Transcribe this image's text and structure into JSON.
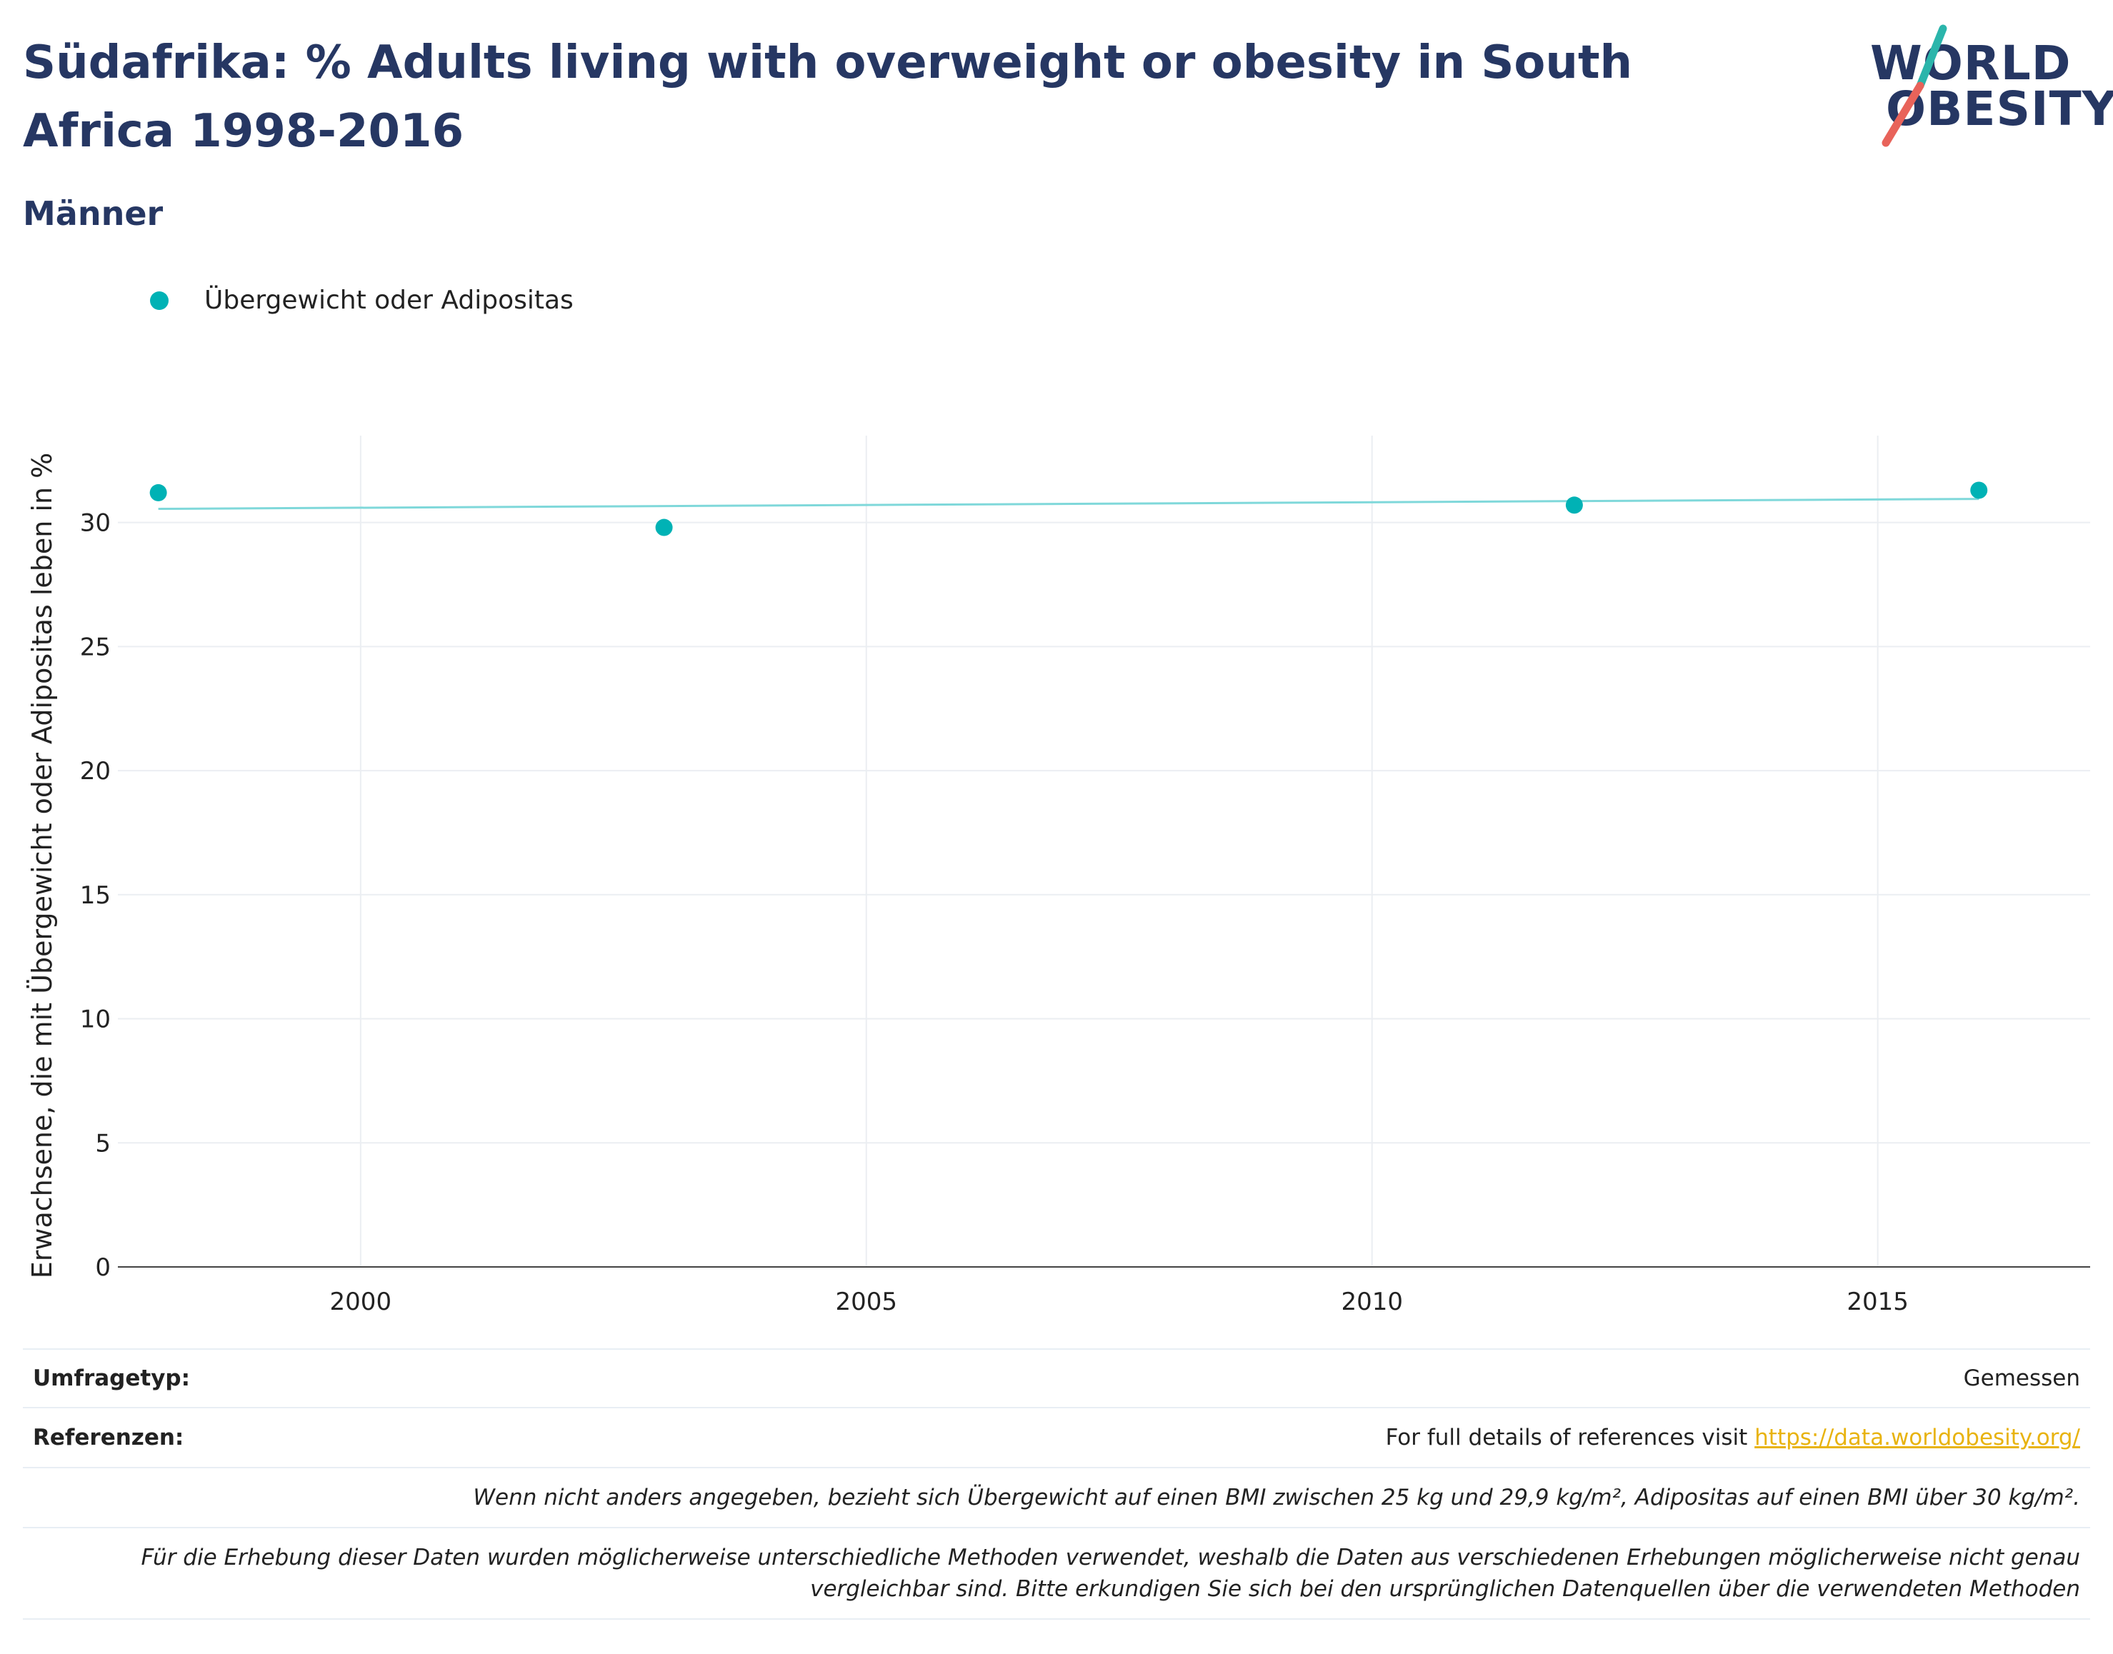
{
  "title": "Südafrika: % Adults living with overweight or obesity in South Africa 1998-2016",
  "subtitle": "Männer",
  "logo": {
    "line1": "WORLD",
    "line2": "OBESITY"
  },
  "legend": {
    "label": "Übergewicht oder Adipositas"
  },
  "colors": {
    "series": "#00b2b5",
    "trend": "#7fd8da",
    "title": "#263763",
    "link": "#e8b30f",
    "logo_teal": "#2bb5ab",
    "logo_red": "#e8635a"
  },
  "chart_data": {
    "type": "scatter",
    "title": "Südafrika: % Adults living with overweight or obesity in South Africa 1998-2016",
    "subtitle": "Männer",
    "xlabel": "",
    "ylabel": "Erwachsene, die mit Übergewicht oder Adipositas leben in %",
    "xlim": [
      1997.6,
      2017.1
    ],
    "ylim": [
      0,
      33.5
    ],
    "xticks": [
      2000,
      2005,
      2010,
      2015
    ],
    "yticks": [
      0,
      5,
      10,
      15,
      20,
      25,
      30
    ],
    "grid": true,
    "legend_position": "top-left",
    "series": [
      {
        "name": "Übergewicht oder Adipositas",
        "x": [
          1998,
          2003,
          2012,
          2016
        ],
        "y": [
          31.2,
          29.8,
          30.7,
          31.3
        ]
      }
    ],
    "trendline": {
      "x": [
        1998,
        2016
      ],
      "y": [
        30.55,
        30.95
      ]
    }
  },
  "footer": {
    "survey_label": "Umfragetyp:",
    "survey_value": "Gemessen",
    "ref_label": "Referenzen:",
    "ref_text": "For full details of references visit",
    "ref_link": "https://data.worldobesity.org/",
    "note1": "Wenn nicht anders angegeben, bezieht sich Übergewicht auf einen BMI zwischen 25 kg und 29,9 kg/m², Adipositas auf einen BMI über 30 kg/m².",
    "note2_line1": "Für die Erhebung dieser Daten wurden möglicherweise unterschiedliche Methoden verwendet, weshalb die Daten aus verschiedenen Erhebungen möglicherweise nicht genau",
    "note2_line2": "vergleichbar sind. Bitte erkundigen Sie sich bei den ursprünglichen Datenquellen über die verwendeten Methoden"
  }
}
